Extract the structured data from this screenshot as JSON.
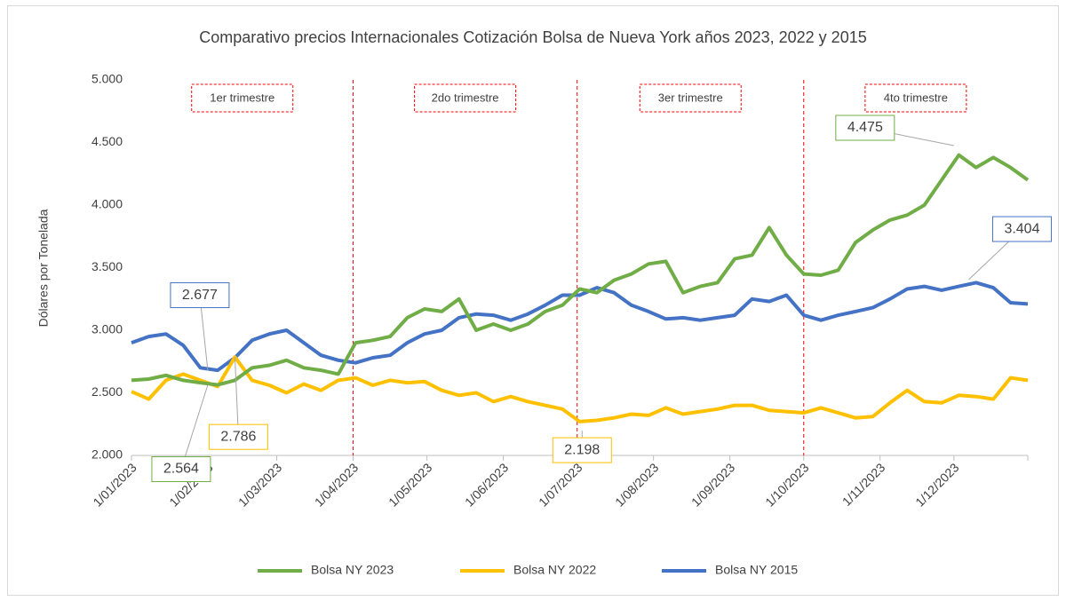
{
  "chart_data": {
    "type": "line",
    "title": "Comparativo precios Internacionales Cotización Bolsa de Nueva York años 2023, 2022 y 2015",
    "y_label": "Dólares por Tonelada",
    "x": [
      "1/01/2023",
      "8/01/2023",
      "15/01/2023",
      "22/01/2023",
      "29/01/2023",
      "5/02/2023",
      "12/02/2023",
      "19/02/2023",
      "26/02/2023",
      "5/03/2023",
      "12/03/2023",
      "19/03/2023",
      "26/03/2023",
      "2/04/2023",
      "9/04/2023",
      "16/04/2023",
      "23/04/2023",
      "30/04/2023",
      "7/05/2023",
      "14/05/2023",
      "21/05/2023",
      "28/05/2023",
      "4/06/2023",
      "11/06/2023",
      "18/06/2023",
      "25/06/2023",
      "2/07/2023",
      "9/07/2023",
      "16/07/2023",
      "23/07/2023",
      "30/07/2023",
      "6/08/2023",
      "13/08/2023",
      "20/08/2023",
      "27/08/2023",
      "3/09/2023",
      "10/09/2023",
      "17/09/2023",
      "24/09/2023",
      "1/10/2023",
      "8/10/2023",
      "15/10/2023",
      "22/10/2023",
      "29/10/2023",
      "5/11/2023",
      "12/11/2023",
      "19/11/2023",
      "26/11/2023",
      "3/12/2023",
      "10/12/2023",
      "17/12/2023",
      "24/12/2023",
      "31/12/2023"
    ],
    "series": [
      {
        "name": "Bolsa NY 2023",
        "color": "#70ad47",
        "values": [
          2600,
          2610,
          2640,
          2600,
          2580,
          2564,
          2600,
          2700,
          2720,
          2760,
          2700,
          2680,
          2650,
          2900,
          2920,
          2950,
          3100,
          3170,
          3150,
          3250,
          3000,
          3050,
          3000,
          3050,
          3150,
          3200,
          3330,
          3300,
          3400,
          3450,
          3530,
          3550,
          3300,
          3350,
          3380,
          3570,
          3600,
          3820,
          3600,
          3450,
          3440,
          3480,
          3700,
          3800,
          3880,
          3920,
          4000,
          4200,
          4400,
          4300,
          4380,
          4300,
          4200
        ]
      },
      {
        "name": "Bolsa NY 2022",
        "color": "#ffc000",
        "values": [
          2510,
          2450,
          2600,
          2650,
          2600,
          2550,
          2786,
          2600,
          2560,
          2500,
          2570,
          2520,
          2600,
          2620,
          2560,
          2600,
          2580,
          2590,
          2520,
          2480,
          2500,
          2430,
          2470,
          2430,
          2400,
          2370,
          2270,
          2280,
          2300,
          2330,
          2320,
          2380,
          2330,
          2350,
          2370,
          2400,
          2400,
          2360,
          2350,
          2340,
          2380,
          2340,
          2300,
          2310,
          2420,
          2520,
          2430,
          2420,
          2480,
          2470,
          2450,
          2620,
          2600
        ]
      },
      {
        "name": "Bolsa NY 2015",
        "color": "#4472c4",
        "values": [
          2900,
          2950,
          2970,
          2880,
          2700,
          2680,
          2780,
          2920,
          2970,
          3000,
          2900,
          2800,
          2760,
          2740,
          2780,
          2800,
          2900,
          2970,
          3000,
          3100,
          3130,
          3120,
          3080,
          3130,
          3200,
          3280,
          3280,
          3340,
          3300,
          3200,
          3150,
          3090,
          3100,
          3080,
          3100,
          3120,
          3250,
          3230,
          3280,
          3120,
          3080,
          3120,
          3150,
          3180,
          3250,
          3330,
          3350,
          3320,
          3350,
          3380,
          3340,
          3220,
          3210
        ]
      }
    ],
    "xlim": [
      "1/01/2023",
      "31/12/2023"
    ],
    "xticks": [
      "1/01/2023",
      "1/02/2023",
      "1/03/2023",
      "1/04/2023",
      "1/05/2023",
      "1/06/2023",
      "1/07/2023",
      "1/08/2023",
      "1/09/2023",
      "1/10/2023",
      "1/11/2023",
      "1/12/2023"
    ],
    "ylim": [
      2000,
      5000
    ],
    "yticks": [
      {
        "value": 2000,
        "label": "2.000"
      },
      {
        "value": 2500,
        "label": "2.500"
      },
      {
        "value": 3000,
        "label": "3.000"
      },
      {
        "value": 3500,
        "label": "3.500"
      },
      {
        "value": 4000,
        "label": "4.000"
      },
      {
        "value": 4500,
        "label": "4.500"
      },
      {
        "value": 5000,
        "label": "5.000"
      }
    ],
    "dividers": [
      "1/04/2023",
      "1/07/2023",
      "1/10/2023"
    ],
    "quarters": [
      "1er trimestre",
      "2do trimestre",
      "3er trimestre",
      "4to trimestre"
    ],
    "annotations": [
      {
        "x": "1/12/2023",
        "value": 4475,
        "label": "4.475",
        "color": "#70ad47"
      },
      {
        "x": "7/12/2023",
        "value": 3404,
        "label": "3.404",
        "color": "#4472c4"
      },
      {
        "x": "3/07/2023",
        "value": 2198,
        "label": "2.198",
        "color": "#ffc000"
      },
      {
        "x": "12/02/2023",
        "value": 2786,
        "label": "2.786",
        "color": "#ffc000"
      },
      {
        "x": "1/02/2023",
        "value": 2677,
        "label": "2.677",
        "color": "#4472c4"
      },
      {
        "x": "1/02/2023",
        "value": 2564,
        "label": "2.564",
        "color": "#70ad47"
      }
    ],
    "legend": "bottom"
  }
}
